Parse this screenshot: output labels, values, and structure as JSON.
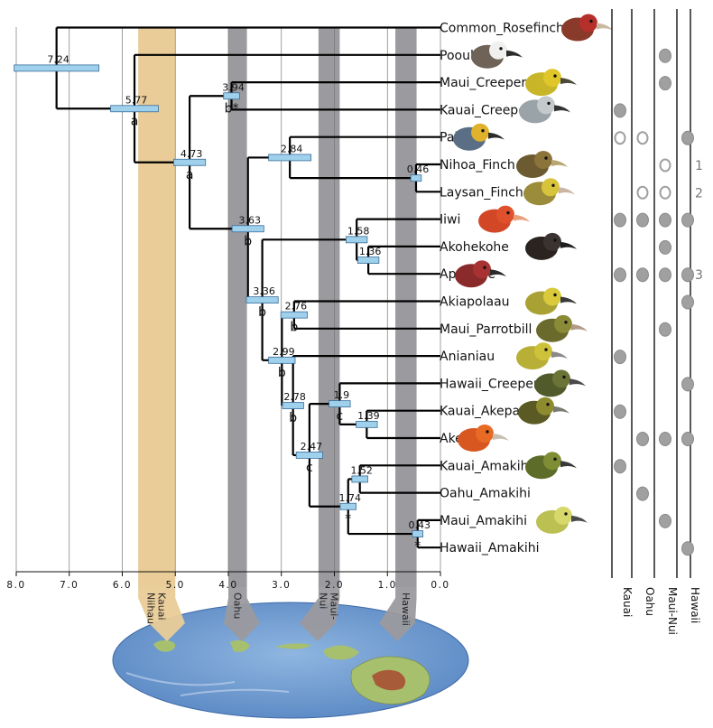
{
  "axis_ticks": [
    "8.0",
    "7.0",
    "6.0",
    "5.0",
    "4.0",
    "3.0",
    "2.0",
    "1.0",
    "0.0"
  ],
  "islands": [
    {
      "name": "Kauai\nNiihau",
      "start": 5.7,
      "end": 5.0,
      "color": "#e9cc97"
    },
    {
      "name": "Oahu",
      "start": 4.0,
      "end": 3.65,
      "color": "#9b9a9e"
    },
    {
      "name": "Maui-\nNui",
      "start": 2.3,
      "end": 1.9,
      "color": "#9b9a9e"
    },
    {
      "name": "Hawaii",
      "start": 0.85,
      "end": 0.45,
      "color": "#9b9a9e"
    }
  ],
  "taxa": [
    "Common_Rosefinch",
    "Poouli",
    "Maui_Creeper",
    "Kauai_Creeper",
    "Palila",
    "Nihoa_Finch",
    "Laysan_Finch",
    "Iiwi",
    "Akohekohe",
    "Apapane",
    "Akiapolaau",
    "Maui_Parrotbill",
    "Anianiau",
    "Hawaii_Creeper",
    "Kauai_Akepa",
    "Akepa",
    "Kauai_Amakihi",
    "Oahu_Amakihi",
    "Maui_Amakihi",
    "Hawaii_Amakihi"
  ],
  "nodes": [
    {
      "age": "7.24",
      "letter": ""
    },
    {
      "age": "5.77",
      "letter": "a"
    },
    {
      "age": "4.73",
      "letter": "a"
    },
    {
      "age": "3.94",
      "letter": "b*"
    },
    {
      "age": "3.63",
      "letter": "b"
    },
    {
      "age": "2.84",
      "letter": ""
    },
    {
      "age": "0.46",
      "letter": ""
    },
    {
      "age": "3.36",
      "letter": "b"
    },
    {
      "age": "1.58",
      "letter": ""
    },
    {
      "age": "1.36",
      "letter": ""
    },
    {
      "age": "2.99",
      "letter": "b"
    },
    {
      "age": "2.76",
      "letter": "b"
    },
    {
      "age": "2.78",
      "letter": "b"
    },
    {
      "age": "1.9",
      "letter": "c"
    },
    {
      "age": "1.39",
      "letter": ""
    },
    {
      "age": "2.47",
      "letter": "c"
    },
    {
      "age": "1.74",
      "letter": "*"
    },
    {
      "age": "1.52",
      "letter": ""
    },
    {
      "age": "0.43",
      "letter": "*"
    }
  ],
  "distribution_columns": [
    "Kauai",
    "Oahu",
    "Maui-Nui",
    "Hawaii"
  ],
  "distribution_rows": [
    [
      "",
      "",
      "",
      ""
    ],
    [
      "",
      "",
      "filled",
      ""
    ],
    [
      "",
      "",
      "filled",
      ""
    ],
    [
      "filled",
      "",
      "",
      ""
    ],
    [
      "open",
      "open",
      "",
      "filled"
    ],
    [
      "",
      "",
      "open",
      ""
    ],
    [
      "",
      "open",
      "open",
      ""
    ],
    [
      "filled",
      "filled",
      "filled",
      "filled"
    ],
    [
      "",
      "",
      "filled",
      ""
    ],
    [
      "filled",
      "filled",
      "filled",
      "filled"
    ],
    [
      "",
      "",
      "",
      "filled"
    ],
    [
      "",
      "",
      "filled",
      ""
    ],
    [
      "filled",
      "",
      "",
      ""
    ],
    [
      "",
      "",
      "",
      "filled"
    ],
    [
      "filled",
      "",
      "",
      ""
    ],
    [
      "",
      "filled",
      "filled",
      "filled"
    ],
    [
      "filled",
      "",
      "",
      ""
    ],
    [
      "",
      "filled",
      "",
      ""
    ],
    [
      "",
      "",
      "filled",
      ""
    ],
    [
      "",
      "",
      "",
      "filled"
    ]
  ],
  "footnotes": [
    {
      "row": 5,
      "text": "1"
    },
    {
      "row": 6,
      "text": "2"
    },
    {
      "row": 9,
      "text": "3"
    }
  ],
  "bird_icons": [
    {
      "row": 0,
      "name": "rosefinch-icon",
      "body": "#8a3a2a",
      "head": "#b5302a",
      "beak": "#c9b9a0"
    },
    {
      "row": 1,
      "name": "poouli-icon",
      "body": "#6e6356",
      "head": "#f0f0ee",
      "beak": "#2b2b2b"
    },
    {
      "row": 2,
      "name": "maui-creeper-icon",
      "body": "#c9b628",
      "head": "#e0c62a",
      "beak": "#4a4a3a"
    },
    {
      "row": 3,
      "name": "kauai-creeper-icon",
      "body": "#9aa3a8",
      "head": "#c4c9cc",
      "beak": "#333333"
    },
    {
      "row": 4,
      "name": "palila-icon",
      "body": "#5a6f86",
      "head": "#e0b12a",
      "beak": "#2b2b2b"
    },
    {
      "row": 5,
      "name": "nihoa-finch-icon",
      "body": "#6c5a30",
      "head": "#8b7339",
      "beak": "#b8a572"
    },
    {
      "row": 6,
      "name": "laysan-finch-icon",
      "body": "#9a8c3a",
      "head": "#d8c43b",
      "beak": "#cbb6a4"
    },
    {
      "row": 7,
      "name": "iiwi-icon",
      "body": "#d24827",
      "head": "#e0502c",
      "beak": "#e9a07a"
    },
    {
      "row": 8,
      "name": "akohekohe-icon",
      "body": "#2a2320",
      "head": "#3a3330",
      "beak": "#1e1e1e"
    },
    {
      "row": 9,
      "name": "apapane-icon",
      "body": "#8a2a2a",
      "head": "#a83232",
      "beak": "#2b2b2b"
    },
    {
      "row": 10,
      "name": "akiapolaau-icon",
      "body": "#a9a133",
      "head": "#d9c93b",
      "beak": "#3a3a3a"
    },
    {
      "row": 11,
      "name": "maui-parrotbill-icon",
      "body": "#6b6a2d",
      "head": "#8b8a36",
      "beak": "#b39a86"
    },
    {
      "row": 12,
      "name": "anianiau-icon",
      "body": "#b8af37",
      "head": "#cfc23b",
      "beak": "#8c8a88"
    },
    {
      "row": 13,
      "name": "hawaii-creeper-icon",
      "body": "#505a2a",
      "head": "#6b7337",
      "beak": "#4a4a4a"
    },
    {
      "row": 14,
      "name": "kauai-akepa-icon",
      "body": "#5b5a24",
      "head": "#8e8a2e",
      "beak": "#7a7a72"
    },
    {
      "row": 15,
      "name": "akepa-icon",
      "body": "#d8561f",
      "head": "#e86a25",
      "beak": "#c8c0b0"
    },
    {
      "row": 16,
      "name": "kauai-amakihi-icon",
      "body": "#5e6c2a",
      "head": "#7f8e35",
      "beak": "#3a3a3a"
    },
    {
      "row": 18,
      "name": "amakihi-icon",
      "body": "#bcbf52",
      "head": "#d7d86c",
      "beak": "#4a4a4a"
    }
  ],
  "colors": {
    "branch": "#000000",
    "hpd_bar": "#9fd0ec",
    "hpd_bar_stroke": "#3b6e9a",
    "grid": "#777777",
    "dot_fill": "#a0a0a0",
    "dot_stroke": "#8a8a8a",
    "ocean": "#5a88c4",
    "land": "#a7c06e",
    "volcano": "#a83a28"
  }
}
